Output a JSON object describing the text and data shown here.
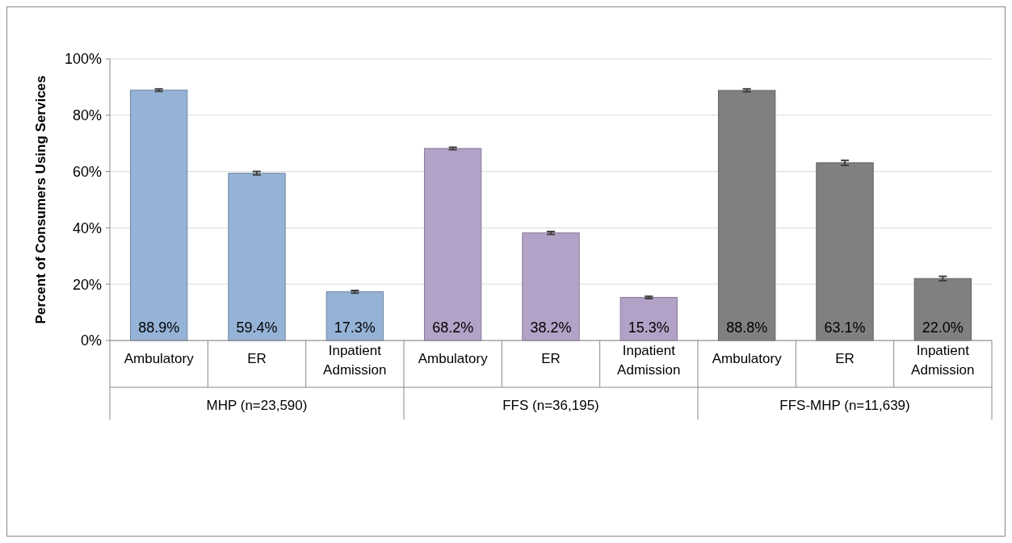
{
  "chart_data": {
    "type": "bar",
    "ylabel": "Percent of Consumers Using Services",
    "categories": [
      "Ambulatory",
      "ER",
      "Inpatient Admission",
      "Ambulatory",
      "ER",
      "Inpatient Admission",
      "Ambulatory",
      "ER",
      "Inpatient Admission"
    ],
    "values": [
      88.9,
      59.4,
      17.3,
      68.2,
      38.2,
      15.3,
      88.8,
      63.1,
      22.0
    ],
    "errors": [
      0.4,
      0.6,
      0.5,
      0.4,
      0.5,
      0.4,
      0.5,
      0.9,
      0.8
    ],
    "colors": [
      "#95b3d7",
      "#95b3d7",
      "#95b3d7",
      "#b3a2c7",
      "#b3a2c7",
      "#b3a2c7",
      "#808080",
      "#808080",
      "#808080"
    ],
    "value_labels": [
      "88.9%",
      "59.4%",
      "17.3%",
      "68.2%",
      "38.2%",
      "15.3%",
      "88.8%",
      "63.1%",
      "22.0%"
    ],
    "annotations": [
      "MHP (n=23,590)",
      "FFS (n=36,195)",
      "FFS-MHP (n=11,639)"
    ],
    "ylim": [
      0,
      100
    ],
    "yticks": [
      {
        "value": 0,
        "label": "0%"
      },
      {
        "value": 20,
        "label": "20%"
      },
      {
        "value": 40,
        "label": "40%"
      },
      {
        "value": 60,
        "label": "60%"
      },
      {
        "value": 80,
        "label": "80%"
      },
      {
        "value": 100,
        "label": "100%"
      }
    ],
    "grid": "y"
  }
}
